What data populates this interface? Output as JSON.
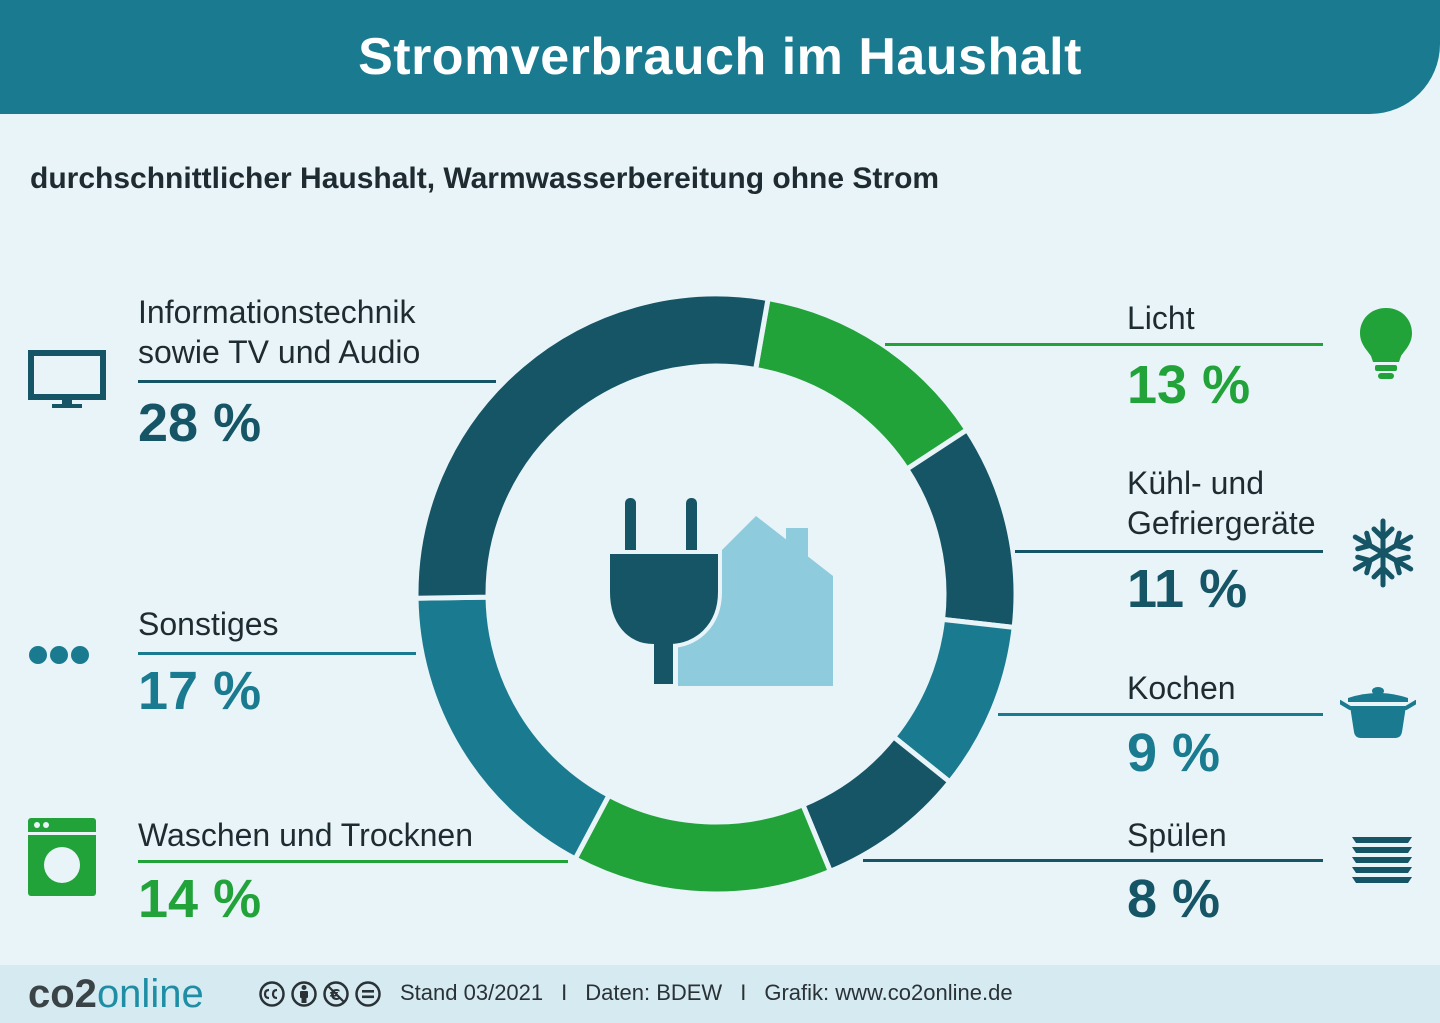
{
  "header": {
    "title": "Stromverbrauch im Haushalt"
  },
  "subtitle": "durchschnittlicher Haushalt, Warmwasserbereitung ohne Strom",
  "chart_data": {
    "type": "pie",
    "variant": "donut",
    "categories": [
      "Licht",
      "Kühl- und Gefriergeräte",
      "Kochen",
      "Spülen",
      "Waschen und Trocknen",
      "Sonstiges",
      "Informationstechnik sowie TV und Audio"
    ],
    "values": [
      13,
      11,
      9,
      8,
      14,
      17,
      28
    ],
    "colors": [
      "#21a33a",
      "#155565",
      "#1a7b90",
      "#155565",
      "#21a33a",
      "#1a7b90",
      "#155565"
    ],
    "labels": {
      "it_line1": "Informationstechnik",
      "it_line2": "sowie TV und Audio",
      "it_pct": "28 %",
      "sonstiges": "Sonstiges",
      "sonstiges_pct": "17 %",
      "waschen": "Waschen und Trocknen",
      "waschen_pct": "14 %",
      "licht": "Licht",
      "licht_pct": "13 %",
      "kuehl_line1": "Kühl- und",
      "kuehl_line2": "Gefriergeräte",
      "kuehl_pct": "11 %",
      "kochen": "Kochen",
      "kochen_pct": "9 %",
      "spuelen": "Spülen",
      "spuelen_pct": "8 %"
    }
  },
  "icons": [
    "tv-icon",
    "more-dots-icon",
    "washing-machine-icon",
    "lightbulb-icon",
    "snowflake-icon",
    "cooking-pot-icon",
    "dishes-stack-icon",
    "plug-house-icon"
  ],
  "footer": {
    "logo_co2": "co2",
    "logo_online": "online",
    "stand": "Stand 03/2021",
    "separator": "I",
    "daten": "Daten: BDEW",
    "grafik": "Grafik: www.co2online.de"
  }
}
